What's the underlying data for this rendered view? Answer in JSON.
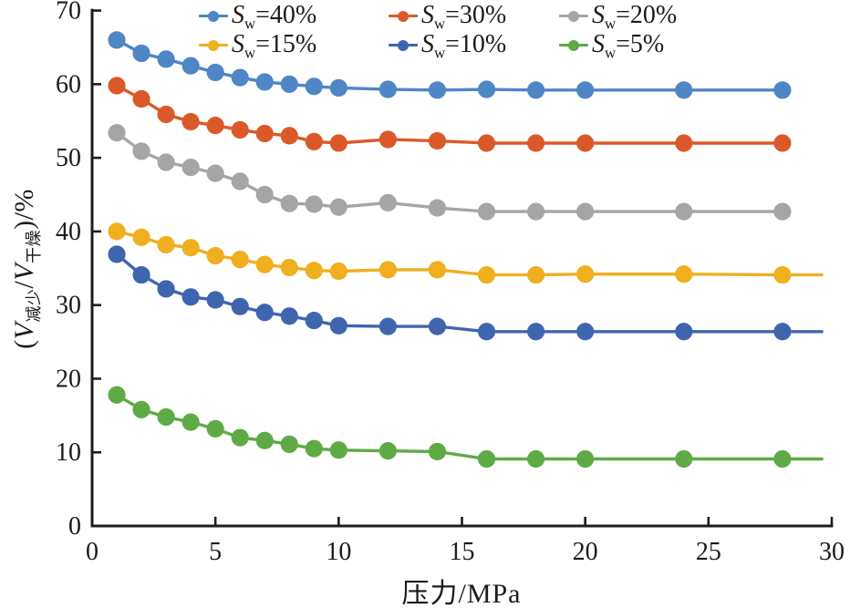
{
  "figure": {
    "x_axis_title": "压力/MPa",
    "background_color": "#ffffff",
    "axis_color": "#211c1c",
    "text_color": "#1e1a1a"
  },
  "chart_data": {
    "type": "line",
    "title": "",
    "xlabel": "压力/MPa",
    "ylabel": "(V减少/V干燥)/%",
    "ylabel_parts": [
      {
        "t": "(",
        "style": "plain"
      },
      {
        "t": "V",
        "style": "italic"
      },
      {
        "t": "减少",
        "style": "sub"
      },
      {
        "t": "/",
        "style": "plain"
      },
      {
        "t": "V",
        "style": "italic"
      },
      {
        "t": "干燥",
        "style": "sub"
      },
      {
        "t": ")/%",
        "style": "plain"
      }
    ],
    "xlim": [
      0,
      30
    ],
    "ylim": [
      0,
      70
    ],
    "x_ticks": [
      0,
      5,
      10,
      15,
      20,
      25,
      30
    ],
    "y_ticks": [
      0,
      10,
      20,
      30,
      40,
      50,
      60,
      70
    ],
    "grid": false,
    "legend_position": "top-inside-two-rows",
    "x": [
      1,
      2,
      3,
      4,
      5,
      6,
      7,
      8,
      9,
      10,
      12,
      14,
      16,
      18,
      20,
      24,
      28
    ],
    "series": [
      {
        "name": "Sw=40%",
        "label_base": "S",
        "label_sub": "w",
        "label_suffix": "=40%",
        "color": "#4e86c6",
        "values": [
          66.0,
          64.2,
          63.4,
          62.5,
          61.6,
          60.9,
          60.3,
          60.0,
          59.7,
          59.5,
          59.3,
          59.2,
          59.3,
          59.2,
          59.2,
          59.2,
          59.2
        ]
      },
      {
        "name": "Sw=30%",
        "label_base": "S",
        "label_sub": "w",
        "label_suffix": "=30%",
        "color": "#db5928",
        "values": [
          59.8,
          58.0,
          55.9,
          54.9,
          54.4,
          53.8,
          53.3,
          53.0,
          52.2,
          52.0,
          52.5,
          52.3,
          52.0,
          52.0,
          52.0,
          52.0,
          52.0
        ]
      },
      {
        "name": "Sw=20%",
        "label_base": "S",
        "label_sub": "w",
        "label_suffix": "=20%",
        "color": "#a5a5a5",
        "values": [
          53.4,
          50.9,
          49.4,
          48.7,
          47.9,
          46.8,
          45.0,
          43.8,
          43.7,
          43.3,
          43.9,
          43.2,
          42.7,
          42.7,
          42.7,
          42.7,
          42.7
        ]
      },
      {
        "name": "Sw=15%",
        "label_base": "S",
        "label_sub": "w",
        "label_suffix": "=15%",
        "color": "#efaf1f",
        "extend_to": 29.6,
        "values": [
          40.0,
          39.2,
          38.2,
          37.8,
          36.7,
          36.2,
          35.5,
          35.1,
          34.7,
          34.6,
          34.8,
          34.8,
          34.1,
          34.1,
          34.2,
          34.2,
          34.1
        ]
      },
      {
        "name": "Sw=10%",
        "label_base": "S",
        "label_sub": "w",
        "label_suffix": "=10%",
        "color": "#4065af",
        "extend_to": 29.6,
        "values": [
          36.9,
          34.1,
          32.2,
          31.1,
          30.7,
          29.8,
          29.0,
          28.5,
          27.9,
          27.2,
          27.1,
          27.1,
          26.4,
          26.4,
          26.4,
          26.4,
          26.4
        ]
      },
      {
        "name": "Sw=5%",
        "label_base": "S",
        "label_sub": "w",
        "label_suffix": "=5%",
        "color": "#5eab46",
        "extend_to": 29.6,
        "values": [
          17.8,
          15.8,
          14.8,
          14.1,
          13.2,
          12.0,
          11.6,
          11.1,
          10.5,
          10.3,
          10.2,
          10.1,
          9.1,
          9.1,
          9.1,
          9.1,
          9.1
        ]
      }
    ]
  }
}
